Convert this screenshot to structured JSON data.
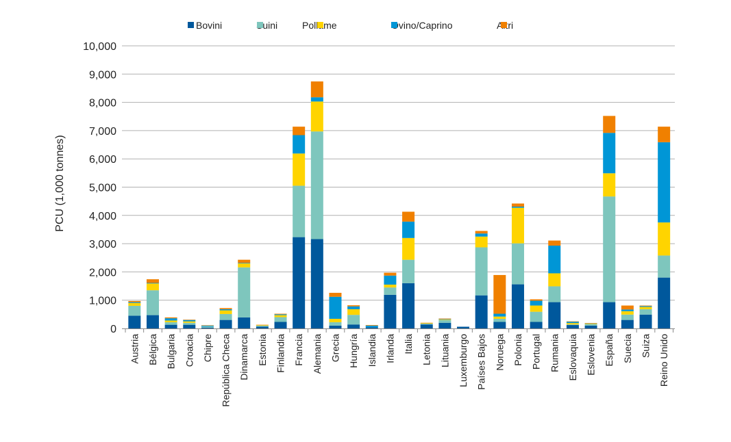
{
  "chart_data": {
    "type": "bar",
    "stacked": true,
    "title": "",
    "xlabel": "",
    "ylabel": "PCU (1,000 tonnes)",
    "ylim": [
      0,
      10000
    ],
    "yticks": [
      "0",
      "1,000",
      "2,000",
      "3,000",
      "4,000",
      "5,000",
      "6,000",
      "7,000",
      "8,000",
      "9,000",
      "10,000"
    ],
    "grid": true,
    "legend_position": "top",
    "categories": [
      "Austria",
      "Bélgica",
      "Bulgaria",
      "Croacia",
      "Chipre",
      "República Checa",
      "Dinamarca",
      "Estonia",
      "Finlandia",
      "Francia",
      "Alemania",
      "Grecia",
      "Hungría",
      "Islandia",
      "Irlanda",
      "Italia",
      "Letonia",
      "Lituania",
      "Luxemburgo",
      "Países Bajos",
      "Noruega",
      "Polonia",
      "Portugal",
      "Rumania",
      "Eslovaquia",
      "Eslovenia",
      "España",
      "Suecia",
      "Suiza",
      "Reino Unido"
    ],
    "series": [
      {
        "name": "Bovini",
        "color": "#00589C",
        "values": [
          450,
          470,
          130,
          130,
          30,
          300,
          390,
          60,
          230,
          3230,
          3160,
          100,
          140,
          40,
          1190,
          1600,
          140,
          200,
          60,
          1170,
          230,
          1560,
          230,
          930,
          120,
          100,
          930,
          300,
          490,
          1800
        ]
      },
      {
        "name": "Suini",
        "color": "#7EC6BD",
        "values": [
          350,
          880,
          90,
          70,
          40,
          210,
          1770,
          40,
          170,
          1820,
          3810,
          120,
          340,
          0,
          260,
          830,
          30,
          100,
          0,
          1700,
          110,
          1450,
          360,
          560,
          20,
          50,
          3740,
          190,
          190,
          780
        ]
      },
      {
        "name": "Pollame",
        "color": "#FFD400",
        "values": [
          100,
          240,
          60,
          50,
          0,
          130,
          140,
          20,
          70,
          1140,
          1060,
          120,
          200,
          0,
          100,
          770,
          20,
          20,
          0,
          380,
          80,
          1260,
          220,
          460,
          50,
          20,
          820,
          120,
          80,
          1170
        ]
      },
      {
        "name": "Ovino/Caprino",
        "color": "#0096D6",
        "values": [
          30,
          20,
          80,
          50,
          30,
          40,
          20,
          0,
          30,
          650,
          150,
          780,
          100,
          60,
          320,
          580,
          0,
          10,
          0,
          110,
          100,
          40,
          170,
          980,
          50,
          10,
          1430,
          60,
          30,
          2840
        ]
      },
      {
        "name": "Altri",
        "color": "#F08000",
        "values": [
          40,
          130,
          30,
          10,
          10,
          40,
          110,
          10,
          20,
          300,
          560,
          140,
          40,
          20,
          100,
          350,
          10,
          20,
          0,
          90,
          1370,
          110,
          50,
          180,
          10,
          10,
          600,
          140,
          20,
          550
        ]
      }
    ]
  }
}
